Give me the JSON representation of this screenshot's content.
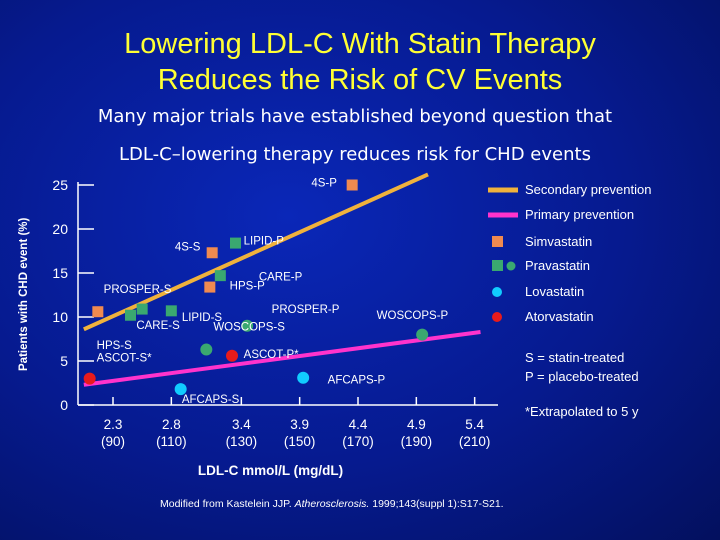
{
  "title_lines": [
    "Lowering LDL-C With Statin Therapy",
    "Reduces the Risk of CV Events"
  ],
  "subtitle_lines": [
    "Many major trials have established beyond question that",
    "LDL-C–lowering therapy reduces risk for CHD events"
  ],
  "source": {
    "prefix": "Modified from Kastelein JJP. ",
    "journal": "Atherosclerosis.",
    "suffix": " 1999;143(suppl 1):S17-S21."
  },
  "colors": {
    "background": "#061a8f",
    "title": "#ffff33",
    "secondary_line": "#f0b23c",
    "primary_line": "#ff33cc",
    "simvastatin": "#f08a50",
    "pravastatin": "#3aa870",
    "lovastatin": "#11ccff",
    "atorvastatin": "#e81b1b"
  },
  "legend": {
    "secondary": "Secondary prevention",
    "primary": "Primary prevention",
    "simvastatin": "Simvastatin",
    "pravastatin": "Pravastatin",
    "lovastatin": "Lovastatin",
    "atorvastatin": "Atorvastatin",
    "note1": "S = statin-treated",
    "note2": "P = placebo-treated",
    "note3": "*Extrapolated to 5 y"
  },
  "chart_data": {
    "type": "scatter",
    "title": "",
    "xlabel": "LDL-C mmol/L (mg/dL)",
    "ylabel": "Patients with CHD event (%)",
    "xlim": [
      2.0,
      5.6
    ],
    "ylim": [
      0,
      25
    ],
    "yticks": [
      0,
      5,
      10,
      15,
      20,
      25
    ],
    "xticks": [
      {
        "value": 2.3,
        "label": "2.3",
        "sub": "(90)"
      },
      {
        "value": 2.8,
        "label": "2.8",
        "sub": "(110)"
      },
      {
        "value": 3.4,
        "label": "3.4",
        "sub": "(130)"
      },
      {
        "value": 3.9,
        "label": "3.9",
        "sub": "(150)"
      },
      {
        "value": 4.4,
        "label": "4.4",
        "sub": "(170)"
      },
      {
        "value": 4.9,
        "label": "4.9",
        "sub": "(190)"
      },
      {
        "value": 5.4,
        "label": "5.4",
        "sub": "(210)"
      }
    ],
    "lines": [
      {
        "name": "Secondary prevention",
        "color": "#f0b23c",
        "x": [
          2.05,
          5.0
        ],
        "y": [
          8.6,
          26.2
        ]
      },
      {
        "name": "Primary prevention",
        "color": "#ff33cc",
        "x": [
          2.05,
          5.45
        ],
        "y": [
          2.3,
          8.3
        ]
      }
    ],
    "points": [
      {
        "label": "4S-P",
        "drug": "simvastatin",
        "shape": "square",
        "x": 4.35,
        "y": 25.0,
        "lx": 4.0,
        "ly": 25.3
      },
      {
        "label": "4S-S",
        "drug": "simvastatin",
        "shape": "square",
        "x": 3.15,
        "y": 17.3,
        "lx": 2.83,
        "ly": 18.0
      },
      {
        "label": "LIPID-P",
        "drug": "pravastatin",
        "shape": "square",
        "x": 3.35,
        "y": 18.4,
        "lx": 3.42,
        "ly": 18.7
      },
      {
        "label": "CARE-P",
        "drug": "pravastatin",
        "shape": "square",
        "x": 3.22,
        "y": 14.7,
        "lx": 3.55,
        "ly": 14.6
      },
      {
        "label": "HPS-P",
        "drug": "simvastatin",
        "shape": "square",
        "x": 3.13,
        "y": 13.4,
        "lx": 3.3,
        "ly": 13.6
      },
      {
        "label": "PROSPER-S",
        "drug": "pravastatin",
        "shape": "square",
        "x": 2.55,
        "y": 10.9,
        "lx": 2.22,
        "ly": 13.2
      },
      {
        "label": "LIPID-S",
        "drug": "pravastatin",
        "shape": "square",
        "x": 2.8,
        "y": 10.7,
        "lx": 2.89,
        "ly": 10.0
      },
      {
        "label": "CARE-S",
        "drug": "pravastatin",
        "shape": "square",
        "x": 2.45,
        "y": 10.2,
        "lx": 2.5,
        "ly": 9.1
      },
      {
        "label": "HPS-S",
        "drug": "simvastatin",
        "shape": "square",
        "x": 2.17,
        "y": 10.6,
        "lx": 2.16,
        "ly": 6.8
      },
      {
        "label": "ASCOT-S*",
        "drug": "atorvastatin",
        "shape": "circle",
        "x": 2.1,
        "y": 3.0,
        "lx": 2.16,
        "ly": 5.4
      },
      {
        "label": "PROSPER-P",
        "drug": "pravastatin",
        "shape": "circle",
        "x": 3.45,
        "y": 9.0,
        "lx": 3.66,
        "ly": 10.9
      },
      {
        "label": "WOSCOPS-S",
        "drug": "pravastatin",
        "shape": "circle",
        "x": 3.1,
        "y": 6.3,
        "lx": 3.16,
        "ly": 8.9
      },
      {
        "label": "ASCOT-P*",
        "drug": "atorvastatin",
        "shape": "circle",
        "x": 3.32,
        "y": 5.6,
        "lx": 3.42,
        "ly": 5.8
      },
      {
        "label": "WOSCOPS-P",
        "drug": "pravastatin",
        "shape": "circle",
        "x": 4.95,
        "y": 8.0,
        "lx": 4.56,
        "ly": 10.2
      },
      {
        "label": "AFCAPS-S",
        "drug": "lovastatin",
        "shape": "circle",
        "x": 2.88,
        "y": 1.8,
        "lx": 2.89,
        "ly": 0.7
      },
      {
        "label": "AFCAPS-P",
        "drug": "lovastatin",
        "shape": "circle",
        "x": 3.93,
        "y": 3.1,
        "lx": 4.14,
        "ly": 2.9
      }
    ]
  }
}
